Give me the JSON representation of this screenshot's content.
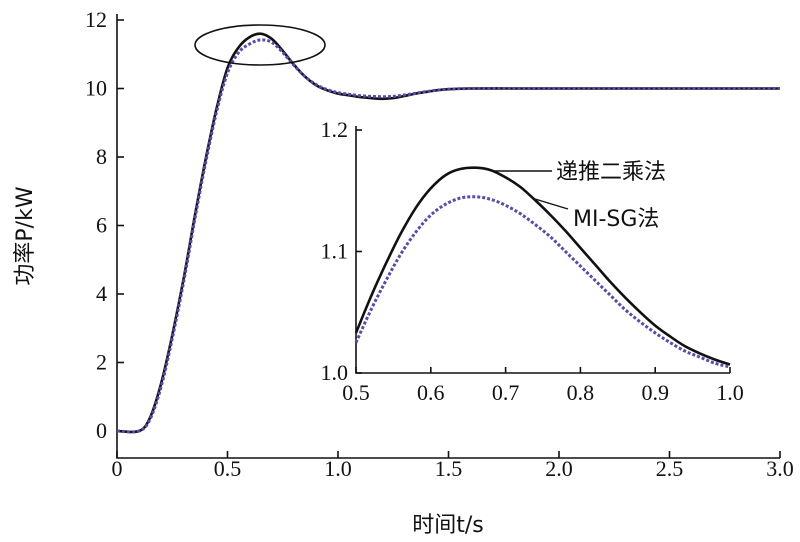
{
  "chart_data": [
    {
      "type": "line",
      "title": "",
      "xlabel": "时间t/s",
      "ylabel": "功率P/kW",
      "xlim": [
        0,
        3.0
      ],
      "ylim": [
        0,
        12
      ],
      "x_ticks": [
        "0",
        "0.5",
        "1.0",
        "1.5",
        "2.0",
        "2.5",
        "3.0"
      ],
      "y_ticks": [
        "0",
        "2",
        "4",
        "6",
        "8",
        "10",
        "12"
      ],
      "grid": false,
      "series": [
        {
          "name": "递推二乘法",
          "color": "#111111",
          "style": "solid",
          "x": [
            0,
            0.1,
            0.15,
            0.2,
            0.25,
            0.3,
            0.35,
            0.4,
            0.45,
            0.5,
            0.55,
            0.6,
            0.65,
            0.7,
            0.75,
            0.8,
            0.85,
            0.9,
            0.95,
            1.0,
            1.05,
            1.1,
            1.15,
            1.2,
            1.25,
            1.3,
            1.35,
            1.4,
            1.45,
            1.5,
            1.6,
            1.8,
            2.0,
            2.5,
            3.0
          ],
          "y": [
            0,
            0,
            0.4,
            1.4,
            2.8,
            4.4,
            6.2,
            7.9,
            9.4,
            10.6,
            11.2,
            11.5,
            11.6,
            11.45,
            11.1,
            10.7,
            10.35,
            10.1,
            9.95,
            9.85,
            9.8,
            9.75,
            9.72,
            9.7,
            9.72,
            9.78,
            9.85,
            9.9,
            9.95,
            9.98,
            10.0,
            10.0,
            10.0,
            10.0,
            10.0
          ]
        },
        {
          "name": "MI-SG法",
          "color": "#5b4aa8",
          "style": "dashed",
          "x": [
            0,
            0.1,
            0.15,
            0.2,
            0.25,
            0.3,
            0.35,
            0.4,
            0.45,
            0.5,
            0.55,
            0.6,
            0.65,
            0.7,
            0.75,
            0.8,
            0.85,
            0.9,
            0.95,
            1.0,
            1.05,
            1.1,
            1.15,
            1.2,
            1.25,
            1.3,
            1.35,
            1.4,
            1.45,
            1.5,
            1.6,
            1.8,
            2.0,
            2.5,
            3.0
          ],
          "y": [
            0,
            0,
            0.35,
            1.3,
            2.7,
            4.3,
            6.1,
            7.8,
            9.3,
            10.45,
            11.05,
            11.3,
            11.42,
            11.35,
            11.05,
            10.68,
            10.35,
            10.12,
            9.97,
            9.88,
            9.83,
            9.79,
            9.77,
            9.76,
            9.77,
            9.81,
            9.86,
            9.91,
            9.95,
            9.98,
            10.0,
            10.0,
            10.0,
            10.0,
            10.0
          ]
        }
      ]
    },
    {
      "type": "line",
      "title": "",
      "xlabel": "",
      "ylabel": "",
      "xlim": [
        0.5,
        1.0
      ],
      "ylim": [
        1.0,
        1.2
      ],
      "x_ticks": [
        "0.5",
        "0.6",
        "0.7",
        "0.8",
        "0.9",
        "1.0"
      ],
      "y_ticks": [
        "1.0",
        "1.1",
        "1.2"
      ],
      "grid": false,
      "legend": [
        "递推二乘法",
        "MI-SG法"
      ],
      "series": [
        {
          "name": "递推二乘法",
          "color": "#111111",
          "style": "solid",
          "x": [
            0.5,
            0.52,
            0.54,
            0.56,
            0.58,
            0.6,
            0.62,
            0.64,
            0.66,
            0.68,
            0.7,
            0.72,
            0.74,
            0.76,
            0.78,
            0.8,
            0.82,
            0.84,
            0.86,
            0.88,
            0.9,
            0.92,
            0.94,
            0.96,
            0.98,
            1.0
          ],
          "y": [
            1.033,
            1.063,
            1.09,
            1.115,
            1.136,
            1.152,
            1.163,
            1.168,
            1.169,
            1.167,
            1.161,
            1.153,
            1.142,
            1.13,
            1.117,
            1.103,
            1.089,
            1.075,
            1.062,
            1.05,
            1.039,
            1.03,
            1.022,
            1.016,
            1.011,
            1.007
          ]
        },
        {
          "name": "MI-SG法",
          "color": "#5b4aa8",
          "style": "dashed",
          "x": [
            0.5,
            0.52,
            0.54,
            0.56,
            0.58,
            0.6,
            0.62,
            0.64,
            0.66,
            0.68,
            0.7,
            0.72,
            0.74,
            0.76,
            0.78,
            0.8,
            0.82,
            0.84,
            0.86,
            0.88,
            0.9,
            0.92,
            0.94,
            0.96,
            0.98,
            1.0
          ],
          "y": [
            1.025,
            1.052,
            1.076,
            1.098,
            1.116,
            1.13,
            1.139,
            1.144,
            1.145,
            1.143,
            1.138,
            1.131,
            1.122,
            1.112,
            1.1,
            1.088,
            1.076,
            1.064,
            1.052,
            1.042,
            1.033,
            1.025,
            1.018,
            1.013,
            1.008,
            1.005
          ]
        }
      ]
    }
  ]
}
